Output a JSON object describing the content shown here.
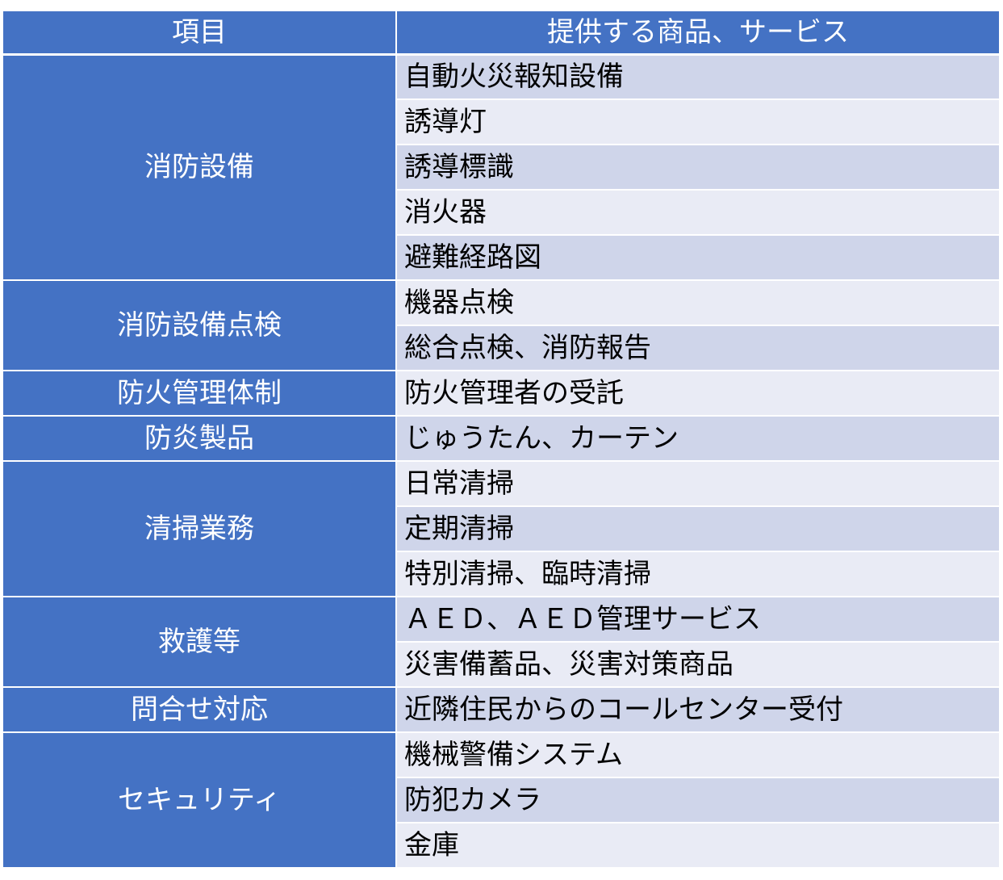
{
  "header": {
    "category": "項目",
    "service": "提供する商品、サービス"
  },
  "colors": {
    "header_bg": "#4472c4",
    "category_bg": "#4472c4",
    "row_odd_bg": "#cfd5ea",
    "row_even_bg": "#e9ebf5",
    "border": "#ffffff"
  },
  "groups": [
    {
      "category": "消防設備",
      "items": [
        "自動火災報知設備",
        "誘導灯",
        "誘導標識",
        "消火器",
        "避難経路図"
      ]
    },
    {
      "category": "消防設備点検",
      "items": [
        "機器点検",
        "総合点検、消防報告"
      ]
    },
    {
      "category": "防火管理体制",
      "items": [
        "防火管理者の受託"
      ]
    },
    {
      "category": "防炎製品",
      "items": [
        "じゅうたん、カーテン"
      ]
    },
    {
      "category": "清掃業務",
      "items": [
        "日常清掃",
        "定期清掃",
        "特別清掃、臨時清掃"
      ]
    },
    {
      "category": "救護等",
      "items": [
        "ＡＥＤ、ＡＥＤ管理サービス",
        "災害備蓄品、災害対策商品"
      ]
    },
    {
      "category": "問合せ対応",
      "items": [
        "近隣住民からのコールセンター受付"
      ]
    },
    {
      "category": "セキュリティ",
      "items": [
        "機械警備システム",
        "防犯カメラ",
        "金庫"
      ]
    }
  ]
}
